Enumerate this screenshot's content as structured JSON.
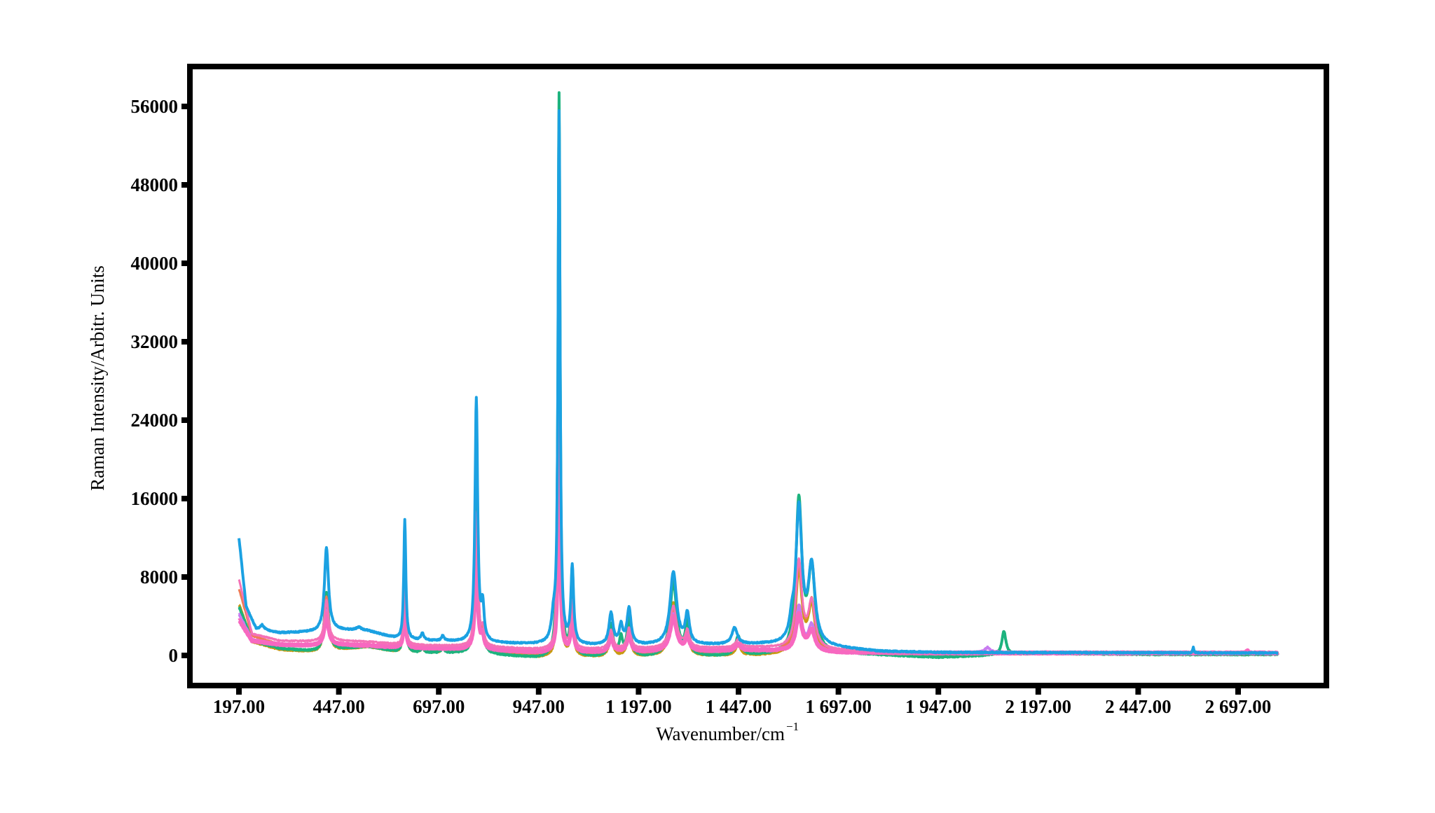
{
  "chart_data": {
    "type": "line",
    "title": "",
    "xlabel": "Wavenumber/cm",
    "xlabel_superscript": "−1",
    "ylabel": "Raman Intensity/Arbitr. Units",
    "xlim": [
      88,
      2900
    ],
    "ylim": [
      -4200,
      59500
    ],
    "x_range_data": [
      197,
      2797
    ],
    "grid": false,
    "legend": "none",
    "x_ticks": [
      197,
      447,
      697,
      947,
      1197,
      1447,
      1697,
      1947,
      2197,
      2447,
      2697
    ],
    "x_tick_labels": [
      "197.00",
      "447.00",
      "697.00",
      "947.00",
      "1 197.00",
      "1 447.00",
      "1 697.00",
      "1 947.00",
      "2 197.00",
      "2 447.00",
      "2 697.00"
    ],
    "y_ticks": [
      0,
      8000,
      16000,
      24000,
      32000,
      40000,
      48000,
      56000
    ],
    "y_tick_labels": [
      "0",
      "8000",
      "16000",
      "24000",
      "32000",
      "40000",
      "48000",
      "56000"
    ],
    "series": [
      {
        "name": "gold",
        "color": "#C99A12",
        "width": 4,
        "baseline": [
          [
            197,
            5200
          ],
          [
            230,
            1400
          ],
          [
            300,
            600
          ],
          [
            400,
            300
          ],
          [
            430,
            500
          ],
          [
            520,
            900
          ],
          [
            600,
            300
          ],
          [
            800,
            300
          ],
          [
            947,
            -200
          ],
          [
            1050,
            -150
          ],
          [
            1300,
            -100
          ],
          [
            1500,
            0
          ],
          [
            1700,
            250
          ],
          [
            1947,
            150
          ],
          [
            2200,
            200
          ],
          [
            2797,
            200
          ]
        ],
        "peaks": [
          [
            416,
            6000,
            6
          ],
          [
            612,
            7800,
            3
          ],
          [
            656,
            500,
            4
          ],
          [
            707,
            500,
            4
          ],
          [
            791,
            14800,
            4
          ],
          [
            807,
            2000,
            4
          ],
          [
            998,
            29000,
            3
          ],
          [
            1031,
            5200,
            4
          ],
          [
            1128,
            2200,
            6
          ],
          [
            1173,
            2400,
            6
          ],
          [
            1284,
            5400,
            10
          ],
          [
            1319,
            2200,
            6
          ],
          [
            1446,
            1000,
            8
          ],
          [
            1598,
            8600,
            9
          ],
          [
            1630,
            4800,
            10
          ]
        ]
      },
      {
        "name": "green",
        "color": "#1DB37E",
        "width": 4,
        "baseline": [
          [
            197,
            5000
          ],
          [
            230,
            1500
          ],
          [
            300,
            700
          ],
          [
            400,
            350
          ],
          [
            430,
            600
          ],
          [
            520,
            900
          ],
          [
            600,
            300
          ],
          [
            800,
            200
          ],
          [
            947,
            -300
          ],
          [
            1050,
            -200
          ],
          [
            1300,
            -200
          ],
          [
            1500,
            0
          ],
          [
            1700,
            200
          ],
          [
            1947,
            -200
          ],
          [
            2197,
            200
          ],
          [
            2500,
            100
          ],
          [
            2797,
            100
          ]
        ],
        "peaks": [
          [
            416,
            6000,
            6
          ],
          [
            612,
            8000,
            3
          ],
          [
            656,
            500,
            4
          ],
          [
            707,
            500,
            4
          ],
          [
            791,
            16000,
            4
          ],
          [
            807,
            2000,
            4
          ],
          [
            998,
            57500,
            3
          ],
          [
            1031,
            8800,
            4
          ],
          [
            1128,
            3300,
            6
          ],
          [
            1153,
            1800,
            5
          ],
          [
            1173,
            3800,
            6
          ],
          [
            1284,
            7600,
            10
          ],
          [
            1319,
            3300,
            6
          ],
          [
            1446,
            1900,
            8
          ],
          [
            1598,
            15500,
            9
          ],
          [
            1630,
            8500,
            10
          ],
          [
            2111,
            2400,
            6
          ]
        ]
      },
      {
        "name": "orange-red",
        "color": "#F07A55",
        "width": 3,
        "baseline": [
          [
            197,
            6800
          ],
          [
            230,
            2000
          ],
          [
            300,
            1100
          ],
          [
            400,
            900
          ],
          [
            430,
            1000
          ],
          [
            520,
            1100
          ],
          [
            600,
            700
          ],
          [
            800,
            500
          ],
          [
            947,
            100
          ],
          [
            1050,
            150
          ],
          [
            1300,
            200
          ],
          [
            1500,
            400
          ],
          [
            1700,
            300
          ],
          [
            1947,
            200
          ],
          [
            2797,
            200
          ]
        ],
        "peaks": [
          [
            416,
            5000,
            6
          ],
          [
            612,
            7000,
            3
          ],
          [
            791,
            14000,
            4
          ],
          [
            807,
            1800,
            4
          ],
          [
            998,
            31000,
            3
          ],
          [
            1031,
            5000,
            4
          ],
          [
            1128,
            2000,
            6
          ],
          [
            1173,
            2200,
            6
          ],
          [
            1284,
            4500,
            10
          ],
          [
            1319,
            1800,
            6
          ],
          [
            1446,
            800,
            8
          ],
          [
            1598,
            9000,
            9
          ],
          [
            1630,
            4900,
            10
          ]
        ]
      },
      {
        "name": "violet",
        "color": "#C77CF0",
        "width": 4,
        "baseline": [
          [
            197,
            4200
          ],
          [
            230,
            1600
          ],
          [
            300,
            1100
          ],
          [
            400,
            1000
          ],
          [
            430,
            1100
          ],
          [
            520,
            1000
          ],
          [
            600,
            800
          ],
          [
            800,
            600
          ],
          [
            947,
            300
          ],
          [
            1050,
            300
          ],
          [
            1300,
            400
          ],
          [
            1500,
            500
          ],
          [
            1700,
            300
          ],
          [
            1947,
            250
          ],
          [
            2050,
            300
          ],
          [
            2797,
            250
          ]
        ],
        "peaks": [
          [
            416,
            3500,
            6
          ],
          [
            612,
            5500,
            3
          ],
          [
            791,
            11000,
            4
          ],
          [
            807,
            1400,
            4
          ],
          [
            998,
            26000,
            3
          ],
          [
            1031,
            4000,
            4
          ],
          [
            1128,
            1600,
            6
          ],
          [
            1173,
            1800,
            6
          ],
          [
            1284,
            3800,
            10
          ],
          [
            1319,
            1500,
            6
          ],
          [
            1446,
            700,
            8
          ],
          [
            1598,
            4500,
            9
          ],
          [
            1630,
            2600,
            10
          ],
          [
            2070,
            500,
            8
          ]
        ]
      },
      {
        "name": "magenta",
        "color": "#F768C0",
        "width": 6,
        "baseline": [
          [
            197,
            3600
          ],
          [
            230,
            1500
          ],
          [
            300,
            1100
          ],
          [
            400,
            1000
          ],
          [
            430,
            1100
          ],
          [
            520,
            1000
          ],
          [
            600,
            800
          ],
          [
            800,
            600
          ],
          [
            947,
            300
          ],
          [
            1050,
            300
          ],
          [
            1300,
            400
          ],
          [
            1500,
            500
          ],
          [
            1700,
            300
          ],
          [
            1947,
            250
          ],
          [
            2797,
            250
          ]
        ],
        "peaks": [
          [
            416,
            3200,
            6
          ],
          [
            612,
            5000,
            3
          ],
          [
            791,
            10500,
            4
          ],
          [
            807,
            1300,
            4
          ],
          [
            998,
            25000,
            3
          ],
          [
            1031,
            3800,
            4
          ],
          [
            1128,
            1500,
            6
          ],
          [
            1173,
            1700,
            6
          ],
          [
            1284,
            3500,
            10
          ],
          [
            1319,
            1400,
            6
          ],
          [
            1446,
            650,
            8
          ],
          [
            1598,
            3700,
            9
          ],
          [
            1630,
            2100,
            10
          ],
          [
            2720,
            300,
            2
          ]
        ]
      },
      {
        "name": "pink",
        "color": "#F472B6",
        "width": 3,
        "baseline": [
          [
            197,
            7800
          ],
          [
            230,
            2200
          ],
          [
            300,
            1500
          ],
          [
            400,
            1400
          ],
          [
            430,
            1500
          ],
          [
            520,
            1400
          ],
          [
            600,
            1100
          ],
          [
            800,
            900
          ],
          [
            947,
            600
          ],
          [
            1050,
            600
          ],
          [
            1300,
            700
          ],
          [
            1500,
            800
          ],
          [
            1700,
            500
          ],
          [
            1947,
            300
          ],
          [
            2797,
            250
          ]
        ],
        "peaks": [
          [
            416,
            4200,
            6
          ],
          [
            612,
            6500,
            3
          ],
          [
            791,
            13500,
            4
          ],
          [
            807,
            1700,
            4
          ],
          [
            998,
            32000,
            3
          ],
          [
            1031,
            4800,
            4
          ],
          [
            1128,
            1900,
            6
          ],
          [
            1173,
            2100,
            6
          ],
          [
            1284,
            4300,
            10
          ],
          [
            1319,
            1700,
            6
          ],
          [
            1446,
            800,
            8
          ],
          [
            1598,
            8800,
            9
          ],
          [
            1630,
            4600,
            10
          ]
        ]
      },
      {
        "name": "blue",
        "color": "#1BA1E2",
        "width": 4,
        "baseline": [
          [
            197,
            12000
          ],
          [
            215,
            5000
          ],
          [
            240,
            2700
          ],
          [
            300,
            2300
          ],
          [
            400,
            2400
          ],
          [
            430,
            2600
          ],
          [
            520,
            2500
          ],
          [
            600,
            1600
          ],
          [
            800,
            1300
          ],
          [
            947,
            1100
          ],
          [
            1050,
            1000
          ],
          [
            1300,
            1000
          ],
          [
            1500,
            1100
          ],
          [
            1650,
            900
          ],
          [
            1800,
            400
          ],
          [
            1947,
            300
          ],
          [
            2797,
            250
          ]
        ],
        "peaks": [
          [
            255,
            500,
            6
          ],
          [
            416,
            8500,
            6
          ],
          [
            497,
            300,
            8
          ],
          [
            612,
            12200,
            3
          ],
          [
            656,
            700,
            4
          ],
          [
            707,
            500,
            4
          ],
          [
            791,
            24800,
            4
          ],
          [
            807,
            3400,
            4
          ],
          [
            984,
            2200,
            6
          ],
          [
            998,
            54000,
            3
          ],
          [
            1031,
            7800,
            4
          ],
          [
            1128,
            3200,
            6
          ],
          [
            1153,
            1900,
            5
          ],
          [
            1173,
            3700,
            6
          ],
          [
            1284,
            7400,
            10
          ],
          [
            1319,
            3000,
            6
          ],
          [
            1437,
            1700,
            8
          ],
          [
            1580,
            1500,
            6
          ],
          [
            1598,
            13800,
            9
          ],
          [
            1630,
            7800,
            10
          ],
          [
            2585,
            550,
            2
          ]
        ]
      }
    ]
  }
}
